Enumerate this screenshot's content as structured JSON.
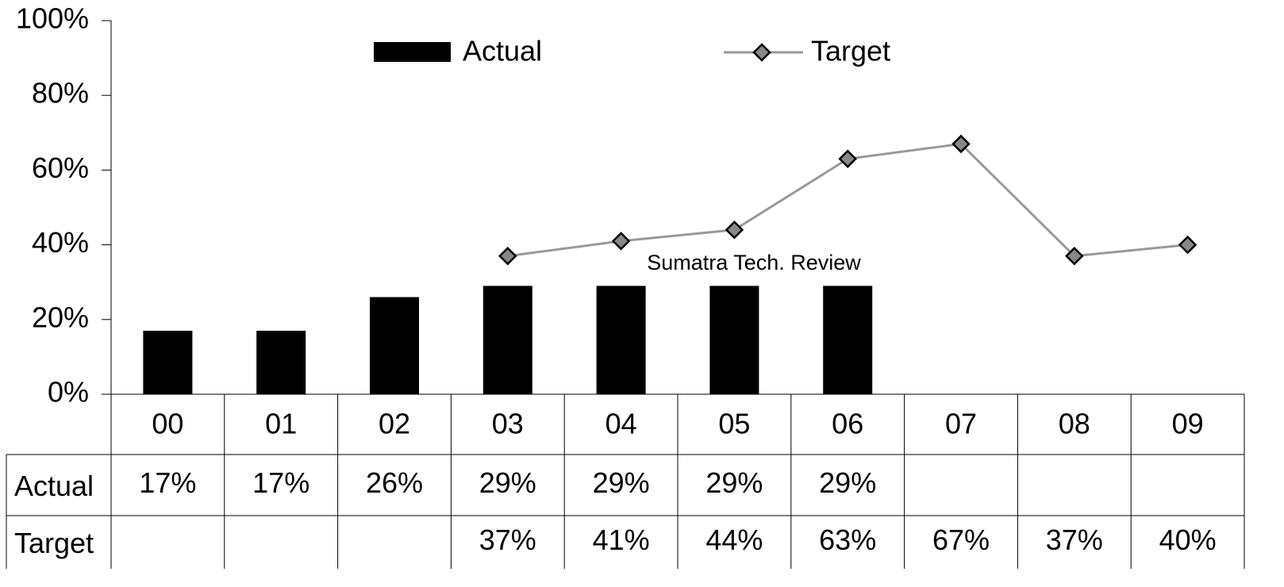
{
  "chart_data": {
    "type": "bar",
    "categories": [
      "00",
      "01",
      "02",
      "03",
      "04",
      "05",
      "06",
      "07",
      "08",
      "09"
    ],
    "series": [
      {
        "name": "Actual",
        "type": "bar",
        "color": "#000000",
        "values": [
          17,
          17,
          26,
          29,
          29,
          29,
          29,
          null,
          null,
          null
        ],
        "value_labels": [
          "17%",
          "17%",
          "26%",
          "29%",
          "29%",
          "29%",
          "29%",
          null,
          null,
          null
        ]
      },
      {
        "name": "Target",
        "type": "line",
        "color": "#999999",
        "marker_color": "#888888",
        "values": [
          null,
          null,
          null,
          37,
          41,
          44,
          63,
          67,
          37,
          40
        ],
        "value_labels": [
          null,
          null,
          null,
          "37%",
          "41%",
          "44%",
          "63%",
          "67%",
          "37%",
          "40%"
        ]
      }
    ],
    "annotations": [
      {
        "text": "Sumatra Tech. Review"
      }
    ],
    "ylim": [
      0,
      100
    ],
    "yticks": [
      {
        "value": 0,
        "label": "0%"
      },
      {
        "value": 20,
        "label": "20%"
      },
      {
        "value": 40,
        "label": "40%"
      },
      {
        "value": 60,
        "label": "60%"
      },
      {
        "value": 80,
        "label": "80%"
      },
      {
        "value": 100,
        "label": "100%"
      }
    ],
    "legend": "top"
  }
}
